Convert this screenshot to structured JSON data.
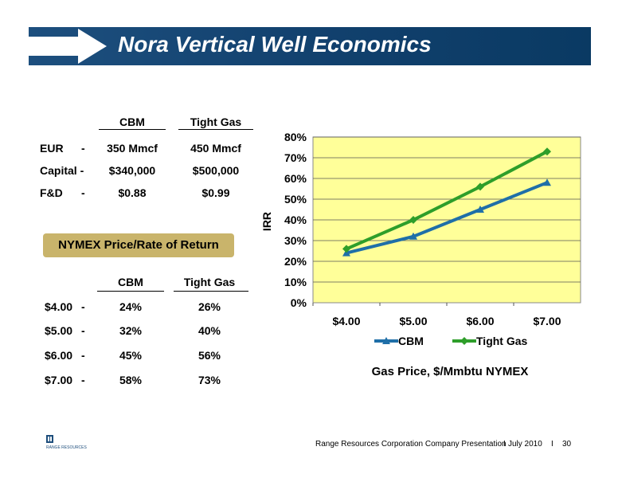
{
  "slide": {
    "title": "Nora Vertical Well Economics",
    "footer_text": "Range Resources Corporation Company Presentation",
    "footer_date": "July 2010",
    "footer_sep": "I",
    "page_number": "30",
    "logo_text": "RANGE RESOURCES"
  },
  "table1": {
    "headers": [
      "CBM",
      "Tight Gas"
    ],
    "rows": [
      {
        "label": "EUR",
        "dash": "-",
        "cbm": "350 Mmcf",
        "tight": "450 Mmcf"
      },
      {
        "label": "Capital -",
        "dash": "",
        "cbm": "$340,000",
        "tight": "$500,000"
      },
      {
        "label": "F&D",
        "dash": "-",
        "cbm": "$0.88",
        "tight": "$0.99"
      }
    ]
  },
  "box_label": "NYMEX Price/Rate of Return",
  "table2": {
    "headers": [
      "CBM",
      "Tight Gas"
    ],
    "rows": [
      {
        "label": "$4.00",
        "dash": "-",
        "cbm": "24%",
        "tight": "26%"
      },
      {
        "label": "$5.00",
        "dash": "-",
        "cbm": "32%",
        "tight": "40%"
      },
      {
        "label": "$6.00",
        "dash": "-",
        "cbm": "45%",
        "tight": "56%"
      },
      {
        "label": "$7.00",
        "dash": "-",
        "cbm": "58%",
        "tight": "73%"
      }
    ]
  },
  "chart_data": {
    "type": "line",
    "categories": [
      "$4.00",
      "$5.00",
      "$6.00",
      "$7.00"
    ],
    "series": [
      {
        "name": "CBM",
        "values": [
          24,
          32,
          45,
          58
        ],
        "color": "#1f6fa8",
        "marker": "triangle"
      },
      {
        "name": "Tight Gas",
        "values": [
          26,
          40,
          56,
          73
        ],
        "color": "#2e9e2a",
        "marker": "diamond"
      }
    ],
    "ylabel": "IRR",
    "xlabel": "Gas Price, $/Mmbtu NYMEX",
    "ylim": [
      0,
      80
    ],
    "yticks": [
      0,
      10,
      20,
      30,
      40,
      50,
      60,
      70,
      80
    ],
    "ytick_labels": [
      "0%",
      "10%",
      "20%",
      "30%",
      "40%",
      "50%",
      "60%",
      "70%",
      "80%"
    ],
    "plot_background": "#ffff99",
    "grid": true,
    "legend_position": "bottom"
  }
}
